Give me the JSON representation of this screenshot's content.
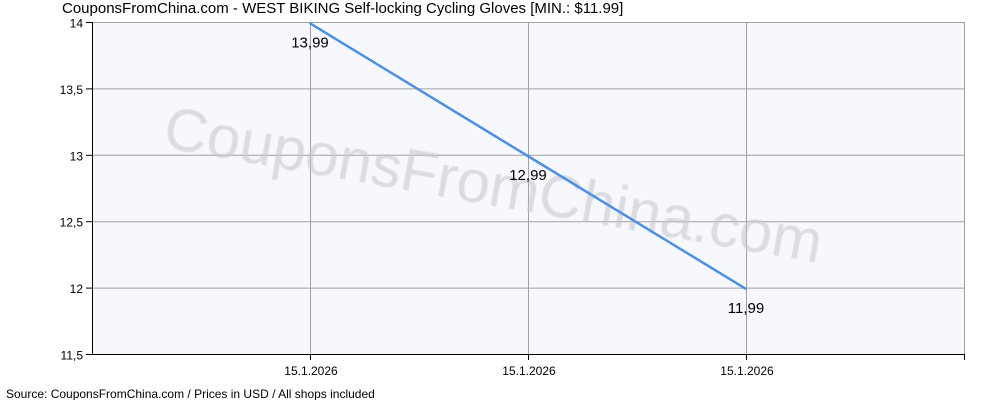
{
  "chart_data": {
    "type": "line",
    "title": "CouponsFromChina.com - WEST BIKING Self-locking Cycling Gloves [MIN.: $11.99]",
    "categories": [
      "15.1.2026",
      "15.1.2026",
      "15.1.2026"
    ],
    "series": [
      {
        "values": [
          13.99,
          12.99,
          11.99
        ],
        "labels": [
          "13,99",
          "12,99",
          "11,99"
        ],
        "color": "#4a8fe8"
      }
    ],
    "ylim": [
      11.5,
      14
    ],
    "yticks": [
      14,
      13.5,
      13,
      12.5,
      12,
      11.5
    ],
    "ytick_labels": [
      "14",
      "13,5",
      "13",
      "12,5",
      "12",
      "11,5"
    ],
    "grid": true,
    "watermark": "CouponsFromChina.com",
    "footer": "Source: CouponsFromChina.com / Prices in USD / All shops included",
    "colors": {
      "plot_bg": "#f7f8fd",
      "grid": "#a0a0a0",
      "line": "#4a8fe8"
    }
  }
}
